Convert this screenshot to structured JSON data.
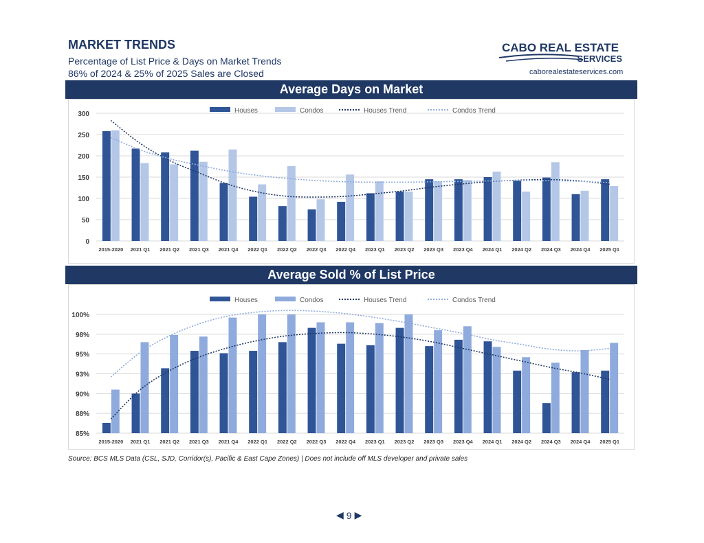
{
  "header": {
    "title": "MARKET TRENDS",
    "subtitle": "Percentage of List Price & Days on Market Trends",
    "note": "86% of 2024 & 25% of 2025 Sales are Closed",
    "logo_line1": "CABO REAL ESTATE",
    "logo_line2": "SERVICES",
    "website": "caborealestateservices.com"
  },
  "colors": {
    "navy": "#1f3864",
    "houses": "#2f5597",
    "condos_days": "#b4c7e7",
    "condos_pct": "#8faadc"
  },
  "chart_data": [
    {
      "type": "bar",
      "title": "Average Days on Market",
      "categories": [
        "2015-2020",
        "2021 Q1",
        "2021 Q2",
        "2021 Q3",
        "2021 Q4",
        "2022 Q1",
        "2022 Q2",
        "2022 Q3",
        "2022 Q4",
        "2023 Q1",
        "2023 Q2",
        "2023 Q3",
        "2023 Q4",
        "2024 Q1",
        "2024 Q2",
        "2024 Q3",
        "2024 Q4",
        "2025 Q1"
      ],
      "series": [
        {
          "name": "Houses",
          "values": [
            258,
            217,
            208,
            212,
            136,
            104,
            82,
            74,
            92,
            112,
            116,
            145,
            145,
            150,
            142,
            149,
            110,
            145
          ]
        },
        {
          "name": "Condos",
          "values": [
            260,
            183,
            180,
            186,
            215,
            133,
            176,
            98,
            156,
            140,
            116,
            140,
            143,
            163,
            116,
            185,
            118,
            129
          ]
        }
      ],
      "trends": [
        {
          "name": "Houses Trend",
          "values": [
            283,
            229,
            189,
            160,
            133,
            115,
            105,
            103,
            105,
            111,
            118,
            127,
            134,
            140,
            143,
            144,
            141,
            133
          ]
        },
        {
          "name": "Condos Trend",
          "values": [
            243,
            214,
            193,
            178,
            164,
            154,
            147,
            142,
            139,
            138,
            138,
            139,
            140,
            141,
            142,
            142,
            140,
            137
          ]
        }
      ],
      "ylim": [
        0,
        300
      ],
      "yticks": [
        "0",
        "50",
        "100",
        "150",
        "200",
        "250",
        "300"
      ],
      "legend": "top-center"
    },
    {
      "type": "bar",
      "title": "Average Sold % of List Price",
      "categories": [
        "2015-2020",
        "2021 Q1",
        "2021 Q2",
        "2021 Q3",
        "2021 Q4",
        "2022 Q1",
        "2022 Q2",
        "2022 Q3",
        "2022 Q4",
        "2023 Q1",
        "2023 Q2",
        "2023 Q3",
        "2023 Q4",
        "2024 Q1",
        "2024 Q2",
        "2024 Q3",
        "2024 Q4",
        "2025 Q1"
      ],
      "series": [
        {
          "name": "Houses",
          "values": [
            86.3,
            90.0,
            93.2,
            95.4,
            95.1,
            95.4,
            96.5,
            98.3,
            96.3,
            96.1,
            98.3,
            96.0,
            96.8,
            96.6,
            92.9,
            88.8,
            92.7,
            92.9
          ]
        },
        {
          "name": "Condos",
          "values": [
            90.5,
            96.5,
            97.4,
            97.2,
            99.6,
            100.0,
            100.0,
            99.0,
            99.0,
            98.9,
            100.0,
            98.0,
            98.5,
            95.9,
            94.6,
            93.9,
            95.5,
            96.4
          ]
        }
      ],
      "trends": [
        {
          "name": "Houses Trend",
          "values": [
            86.8,
            90.5,
            92.9,
            94.6,
            95.8,
            96.7,
            97.3,
            97.6,
            97.7,
            97.5,
            97.1,
            96.5,
            95.7,
            94.9,
            94.1,
            93.3,
            92.6,
            91.8
          ]
        },
        {
          "name": "Condos Trend",
          "values": [
            92.1,
            95.2,
            97.3,
            98.8,
            99.8,
            100.3,
            100.5,
            100.4,
            100.1,
            99.6,
            99.0,
            98.3,
            97.6,
            96.8,
            96.2,
            95.6,
            95.4,
            95.7
          ]
        }
      ],
      "ylim": [
        85,
        100
      ],
      "yticks": [
        "85%",
        "88%",
        "90%",
        "93%",
        "95%",
        "98%",
        "100%"
      ],
      "legend": "top-center"
    }
  ],
  "footer": {
    "source": "Source:  BCS MLS Data (CSL, SJD, Corridor(s), Pacific & East Cape Zones) | Does not include off MLS developer and private sales",
    "page_number": "9",
    "prev": "◀",
    "next": "▶"
  }
}
